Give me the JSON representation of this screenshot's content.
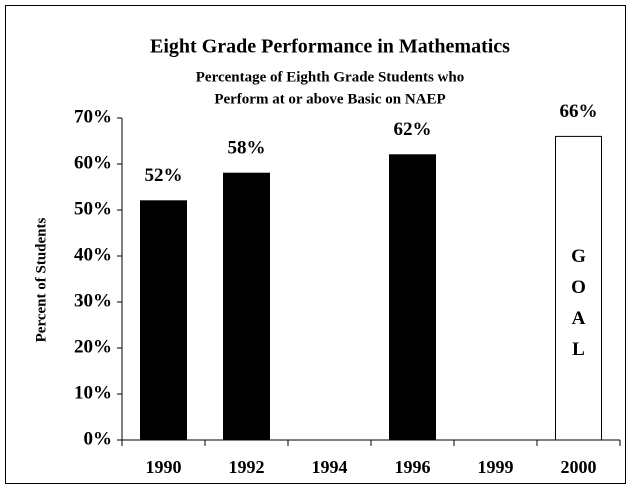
{
  "chart_data": {
    "type": "bar",
    "title": "Eight Grade Performance in Mathematics",
    "subtitle": [
      "Percentage of Eighth Grade Students who",
      "Perform at or above Basic on NAEP"
    ],
    "y_label": "Percent of Students",
    "categories": [
      "1990",
      "1992",
      "1994",
      "1996",
      "1999",
      "2000"
    ],
    "values": [
      52,
      58,
      null,
      62,
      null,
      66
    ],
    "value_labels": [
      "52%",
      "58%",
      null,
      "62%",
      null,
      "66%"
    ],
    "colors": [
      "#000000",
      "#000000",
      "#000000",
      "#000000",
      "#000000",
      "#ffffff"
    ],
    "annotation": "GOAL",
    "ylim": [
      0,
      70
    ],
    "yticks": [
      {
        "value": 0,
        "label": "0%"
      },
      {
        "value": 10,
        "label": "10%"
      },
      {
        "value": 20,
        "label": "20%"
      },
      {
        "value": 30,
        "label": "30%"
      },
      {
        "value": 40,
        "label": "40%"
      },
      {
        "value": 50,
        "label": "50%"
      },
      {
        "value": 60,
        "label": "60%"
      },
      {
        "value": 70,
        "label": "70%"
      }
    ],
    "grid": false
  }
}
